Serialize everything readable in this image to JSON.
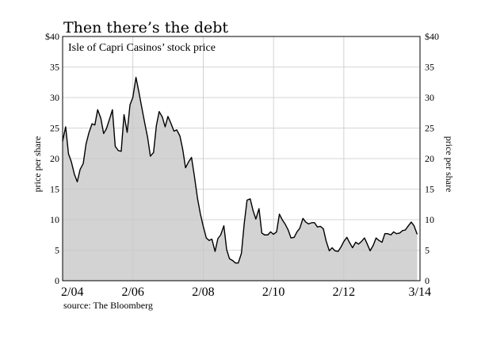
{
  "chart_data": {
    "type": "area",
    "title": "Then there’s the debt",
    "subtitle": "Isle of Capri Casinos’ stock price",
    "ylabel_left": "price per share",
    "ylabel_right": "price per share",
    "source": "source: The Bloomberg",
    "ylim": [
      0,
      40
    ],
    "xlim": [
      2004.083,
      2014.25
    ],
    "grid": true,
    "y_ticks_left": [
      "$40",
      "35",
      "30",
      "25",
      "20",
      "15",
      "10",
      "5",
      "0"
    ],
    "y_ticks_right": [
      "$40",
      "35",
      "30",
      "25",
      "20",
      "15",
      "10",
      "5",
      "0"
    ],
    "y_tick_values": [
      40,
      35,
      30,
      25,
      20,
      15,
      10,
      5,
      0
    ],
    "x_ticks": [
      {
        "label": "2/04",
        "value": 2004.083
      },
      {
        "label": "2/06",
        "value": 2006.083
      },
      {
        "label": "2/08",
        "value": 2008.083
      },
      {
        "label": "2/10",
        "value": 2010.083
      },
      {
        "label": "2/12",
        "value": 2012.083
      },
      {
        "label": "3/14",
        "value": 2014.167
      }
    ],
    "fill_color": "#d3d3d3",
    "line_color": "#000000",
    "series": [
      {
        "x": [
          2004.08,
          2004.17,
          2004.25,
          2004.33,
          2004.42,
          2004.5,
          2004.58,
          2004.67,
          2004.75,
          2004.83,
          2004.92,
          2005.0,
          2005.08,
          2005.17,
          2005.25,
          2005.33,
          2005.42,
          2005.5,
          2005.58,
          2005.67,
          2005.75,
          2005.83,
          2005.92,
          2006.0,
          2006.08,
          2006.17,
          2006.25,
          2006.33,
          2006.42,
          2006.5,
          2006.58,
          2006.67,
          2006.75,
          2006.83,
          2006.92,
          2007.0,
          2007.08,
          2007.17,
          2007.25,
          2007.33,
          2007.42,
          2007.5,
          2007.58,
          2007.67,
          2007.75,
          2007.83,
          2007.92,
          2008.0,
          2008.08,
          2008.17,
          2008.25,
          2008.33,
          2008.42,
          2008.5,
          2008.58,
          2008.67,
          2008.75,
          2008.83,
          2008.92,
          2009.0,
          2009.08,
          2009.17,
          2009.25,
          2009.33,
          2009.42,
          2009.5,
          2009.58,
          2009.67,
          2009.75,
          2009.83,
          2009.92,
          2010.0,
          2010.08,
          2010.17,
          2010.25,
          2010.33,
          2010.42,
          2010.5,
          2010.58,
          2010.67,
          2010.75,
          2010.83,
          2010.92,
          2011.0,
          2011.08,
          2011.17,
          2011.25,
          2011.33,
          2011.42,
          2011.5,
          2011.58,
          2011.67,
          2011.75,
          2011.83,
          2011.92,
          2012.0,
          2012.08,
          2012.17,
          2012.25,
          2012.33,
          2012.42,
          2012.5,
          2012.58,
          2012.67,
          2012.75,
          2012.83,
          2012.92,
          2013.0,
          2013.08,
          2013.17,
          2013.25,
          2013.33,
          2013.42,
          2013.5,
          2013.58,
          2013.67,
          2013.75,
          2013.83,
          2013.92,
          2014.0,
          2014.08,
          2014.17
        ],
        "values": [
          22.8,
          25.2,
          20.8,
          19.5,
          17.4,
          16.2,
          18.2,
          19.2,
          22.4,
          24.2,
          25.7,
          25.5,
          28.0,
          26.6,
          24.1,
          24.9,
          26.5,
          28.0,
          22.0,
          21.3,
          21.2,
          27.2,
          24.3,
          28.8,
          30.0,
          33.3,
          31.0,
          28.5,
          25.8,
          23.5,
          20.4,
          21.0,
          25.4,
          27.7,
          26.8,
          25.2,
          26.9,
          25.7,
          24.5,
          24.7,
          23.7,
          21.5,
          18.5,
          19.5,
          20.2,
          17.2,
          13.5,
          11.0,
          9.0,
          7.0,
          6.6,
          6.8,
          4.8,
          6.9,
          7.5,
          9.0,
          5.1,
          3.6,
          3.3,
          2.9,
          2.9,
          4.5,
          9.4,
          13.2,
          13.4,
          11.5,
          10.1,
          11.8,
          7.8,
          7.5,
          7.5,
          8.0,
          7.6,
          8.0,
          10.9,
          10.0,
          9.2,
          8.3,
          7.0,
          7.1,
          8.0,
          8.6,
          10.2,
          9.6,
          9.3,
          9.5,
          9.5,
          8.8,
          8.9,
          8.5,
          6.5,
          4.9,
          5.4,
          4.9,
          4.8,
          5.5,
          6.4,
          7.1,
          6.2,
          5.4,
          6.3,
          6.0,
          6.4,
          7.0,
          6.0,
          4.9,
          5.8,
          7.0,
          6.6,
          6.3,
          7.7,
          7.7,
          7.5,
          8.0,
          7.7,
          7.8,
          8.2,
          8.3,
          9.0,
          9.6,
          9.0,
          7.6
        ]
      }
    ]
  }
}
